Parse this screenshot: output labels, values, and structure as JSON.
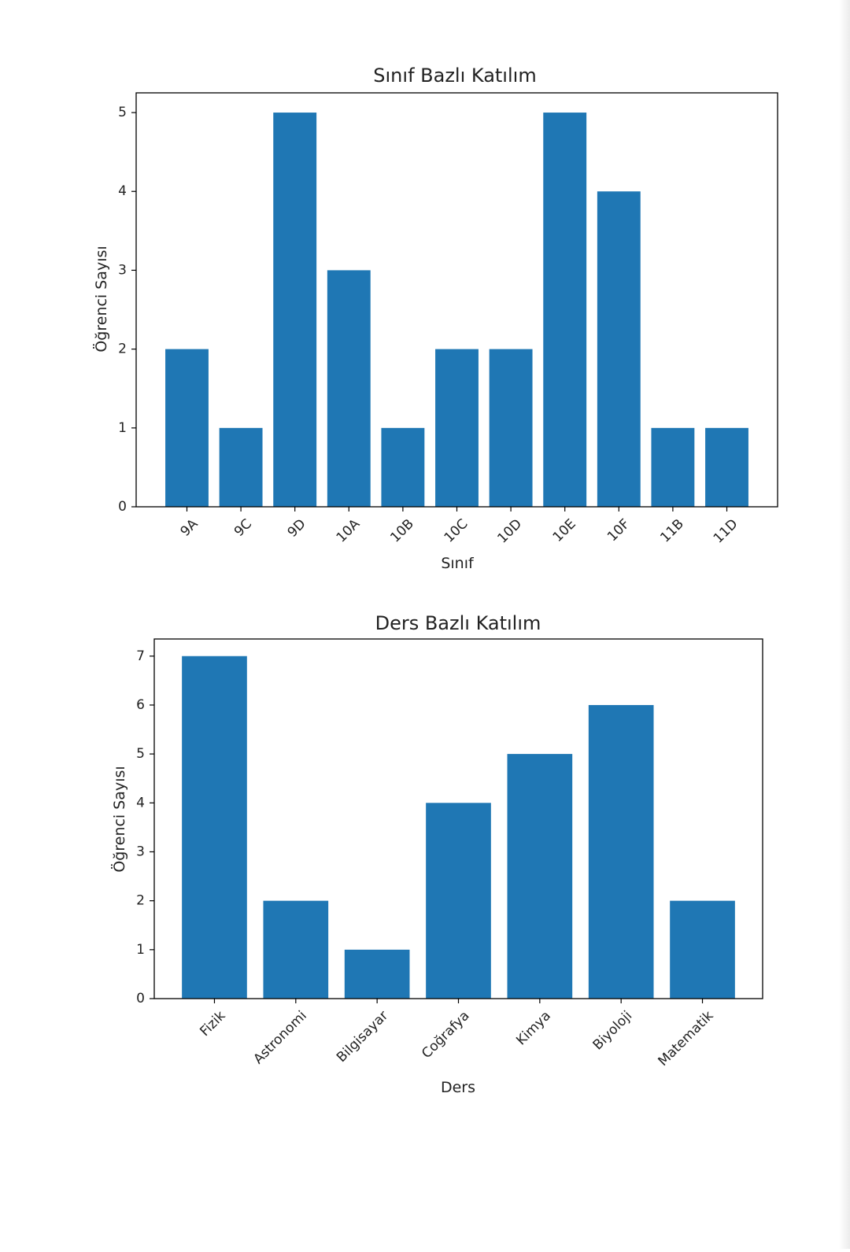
{
  "chart_data": [
    {
      "type": "bar",
      "title": "Sınıf Bazlı Katılım",
      "xlabel": "Sınıf",
      "ylabel": "Öğrenci Sayısı",
      "categories": [
        "9A",
        "9C",
        "9D",
        "10A",
        "10B",
        "10C",
        "10D",
        "10E",
        "10F",
        "11B",
        "11D"
      ],
      "values": [
        2,
        1,
        5,
        3,
        1,
        2,
        2,
        5,
        4,
        1,
        1
      ],
      "ylim": [
        0,
        5.25
      ],
      "yticks": [
        0,
        1,
        2,
        3,
        4,
        5
      ],
      "bar_color": "#1f77b4",
      "grid": false,
      "xtick_rotation": 45
    },
    {
      "type": "bar",
      "title": "Ders Bazlı Katılım",
      "xlabel": "Ders",
      "ylabel": "Öğrenci Sayısı",
      "categories": [
        "Fizik",
        "Astronomi",
        "Bilgisayar",
        "Coğrafya",
        "Kimya",
        "Biyoloji",
        "Matematik"
      ],
      "values": [
        7,
        2,
        1,
        4,
        5,
        6,
        2
      ],
      "ylim": [
        0,
        7.35
      ],
      "yticks": [
        0,
        1,
        2,
        3,
        4,
        5,
        6,
        7
      ],
      "bar_color": "#1f77b4",
      "grid": false,
      "xtick_rotation": 45
    }
  ]
}
